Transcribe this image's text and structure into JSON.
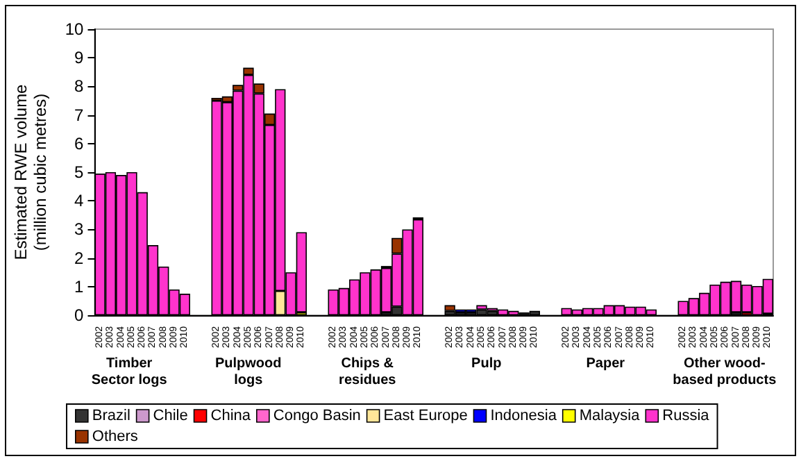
{
  "chart_data": {
    "type": "bar",
    "stacked": true,
    "ylabel": "Estimated RWE volume\n(million cubic metres)",
    "categories": [
      "2002",
      "2003",
      "2004",
      "2005",
      "2006",
      "2007",
      "2008",
      "2009",
      "2010",
      null,
      null,
      "2002",
      "2003",
      "2004",
      "2005",
      "2006",
      "2007",
      "2008",
      "2009",
      "2010",
      null,
      null,
      "2002",
      "2003",
      "2004",
      "2005",
      "2006",
      "2007",
      "2008",
      "2009",
      "2010",
      null,
      null,
      "2002",
      "2003",
      "2004",
      "2005",
      "2006",
      "2007",
      "2008",
      "2009",
      "2010",
      null,
      null,
      "2002",
      "2003",
      "2004",
      "2005",
      "2006",
      "2007",
      "2008",
      "2009",
      "2010",
      null,
      null,
      "2002",
      "2003",
      "2004",
      "2005",
      "2006",
      "2007",
      "2008",
      "2009",
      "2010"
    ],
    "annotations": [
      "Timber\nSector logs",
      "Pulpwood\nlogs",
      "Chips &\nresidues",
      "Pulp",
      "Paper",
      "Other wood-\nbased products"
    ],
    "ylim": [
      0,
      10
    ],
    "yticks": [
      0,
      1,
      2,
      3,
      4,
      5,
      6,
      7,
      8,
      9,
      10
    ],
    "grid": false,
    "legend": "bottom",
    "series": [
      {
        "name": "Brazil",
        "color": "#333333",
        "values": [
          null,
          null,
          null,
          null,
          null,
          null,
          null,
          null,
          null,
          null,
          null,
          null,
          null,
          null,
          null,
          null,
          null,
          null,
          null,
          null,
          null,
          null,
          null,
          null,
          null,
          null,
          null,
          0.1,
          0.3,
          null,
          null,
          null,
          null,
          0.15,
          0.1,
          0.1,
          0.2,
          0.15,
          null,
          null,
          0.1,
          0.15,
          null,
          null,
          null,
          null,
          null,
          null,
          null,
          null,
          null,
          null,
          null,
          null,
          null,
          null,
          null,
          null,
          null,
          null,
          0.1,
          null,
          null,
          0.05
        ]
      },
      {
        "name": "Chile",
        "color": "#cc99cc",
        "values": [
          null,
          null,
          null,
          null,
          null,
          null,
          null,
          null,
          null,
          null,
          null,
          null,
          null,
          null,
          null,
          null,
          null,
          null,
          null,
          null,
          null,
          null,
          null,
          null,
          null,
          null,
          null,
          null,
          null,
          null,
          null,
          null,
          null,
          null,
          null,
          null,
          null,
          null,
          null,
          null,
          null,
          null,
          null,
          null,
          null,
          null,
          null,
          null,
          null,
          null,
          null,
          null,
          null,
          null,
          null,
          null,
          null,
          null,
          null,
          null,
          null,
          null,
          null,
          null
        ]
      },
      {
        "name": "China",
        "color": "#ff0000",
        "values": [
          null,
          null,
          null,
          null,
          null,
          null,
          null,
          null,
          null,
          null,
          null,
          null,
          null,
          null,
          null,
          null,
          null,
          null,
          null,
          null,
          null,
          null,
          null,
          null,
          null,
          null,
          null,
          null,
          null,
          null,
          null,
          null,
          null,
          null,
          null,
          null,
          null,
          null,
          null,
          null,
          null,
          null,
          null,
          null,
          null,
          null,
          null,
          null,
          null,
          null,
          null,
          null,
          null,
          null,
          null,
          null,
          null,
          null,
          null,
          null,
          null,
          0.1,
          null,
          null
        ]
      },
      {
        "name": "Congo Basin",
        "color": "#ff66cc",
        "values": [
          null,
          null,
          null,
          null,
          null,
          null,
          null,
          null,
          null,
          null,
          null,
          null,
          null,
          null,
          null,
          null,
          null,
          null,
          null,
          null,
          null,
          null,
          null,
          null,
          null,
          null,
          null,
          null,
          null,
          null,
          null,
          null,
          null,
          null,
          null,
          null,
          null,
          null,
          null,
          null,
          null,
          null,
          null,
          null,
          null,
          null,
          null,
          null,
          null,
          null,
          null,
          null,
          null,
          null,
          null,
          null,
          null,
          null,
          null,
          null,
          null,
          null,
          null,
          null
        ]
      },
      {
        "name": "East Europe",
        "color": "#ffe699",
        "values": [
          null,
          null,
          null,
          null,
          null,
          null,
          null,
          null,
          null,
          null,
          null,
          null,
          null,
          null,
          null,
          null,
          null,
          0.85,
          null,
          null,
          null,
          null,
          null,
          null,
          null,
          null,
          null,
          null,
          null,
          null,
          null,
          null,
          null,
          null,
          null,
          null,
          null,
          null,
          null,
          null,
          null,
          null,
          null,
          null,
          null,
          null,
          null,
          null,
          null,
          null,
          null,
          null,
          null,
          null,
          null,
          null,
          null,
          null,
          null,
          null,
          null,
          null,
          null,
          null
        ]
      },
      {
        "name": "Indonesia",
        "color": "#0000ff",
        "values": [
          null,
          null,
          null,
          null,
          null,
          null,
          null,
          null,
          null,
          null,
          null,
          null,
          null,
          null,
          null,
          null,
          null,
          null,
          null,
          null,
          null,
          null,
          null,
          null,
          null,
          null,
          null,
          null,
          null,
          null,
          null,
          null,
          null,
          null,
          0.1,
          0.1,
          null,
          null,
          null,
          null,
          null,
          null,
          null,
          null,
          null,
          null,
          null,
          null,
          null,
          null,
          null,
          null,
          null,
          null,
          null,
          null,
          null,
          null,
          null,
          null,
          null,
          null,
          null,
          null
        ]
      },
      {
        "name": "Malaysia",
        "color": "#ffff00",
        "values": [
          null,
          null,
          null,
          null,
          null,
          null,
          null,
          null,
          null,
          null,
          null,
          null,
          null,
          null,
          null,
          null,
          null,
          null,
          null,
          0.1,
          null,
          null,
          null,
          null,
          null,
          null,
          null,
          null,
          null,
          null,
          null,
          null,
          null,
          null,
          null,
          null,
          null,
          null,
          null,
          null,
          null,
          null,
          null,
          null,
          null,
          null,
          null,
          null,
          null,
          null,
          null,
          null,
          null,
          null,
          null,
          null,
          null,
          null,
          null,
          null,
          null,
          null,
          null,
          null
        ]
      },
      {
        "name": "Russia",
        "color": "#ff33cc",
        "values": [
          4.95,
          5.0,
          4.9,
          5.0,
          4.3,
          2.45,
          1.7,
          0.9,
          0.75,
          null,
          null,
          7.5,
          7.45,
          7.85,
          8.4,
          7.75,
          6.65,
          7.05,
          1.5,
          2.8,
          null,
          null,
          0.9,
          0.95,
          1.25,
          1.5,
          1.6,
          1.55,
          1.85,
          3.0,
          3.35,
          null,
          null,
          null,
          null,
          null,
          0.15,
          0.1,
          0.2,
          0.15,
          null,
          null,
          null,
          null,
          0.25,
          0.2,
          0.25,
          0.25,
          0.35,
          0.35,
          0.3,
          0.3,
          0.2,
          null,
          null,
          0.5,
          0.6,
          0.78,
          1.07,
          1.17,
          1.1,
          0.97,
          1.02,
          1.22
        ]
      },
      {
        "name": "Others",
        "color": "#993300",
        "values": [
          null,
          null,
          null,
          null,
          null,
          null,
          null,
          null,
          null,
          null,
          null,
          0.1,
          0.2,
          0.2,
          0.25,
          0.35,
          0.4,
          null,
          null,
          null,
          null,
          null,
          null,
          null,
          null,
          null,
          null,
          0.07,
          0.55,
          null,
          0.07,
          null,
          null,
          0.2,
          null,
          null,
          null,
          null,
          null,
          null,
          null,
          null,
          null,
          null,
          null,
          null,
          null,
          null,
          null,
          null,
          null,
          null,
          null,
          null,
          null,
          null,
          null,
          null,
          null,
          null,
          null,
          null,
          null,
          null
        ]
      }
    ]
  }
}
